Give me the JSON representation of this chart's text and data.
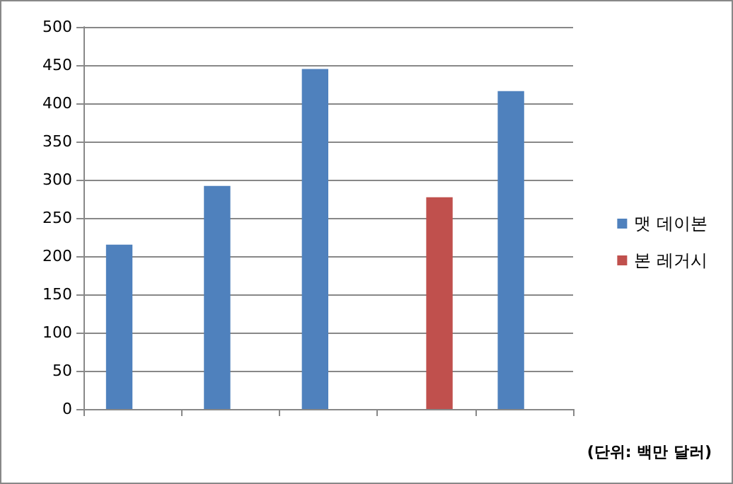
{
  "chart_data": {
    "type": "bar",
    "categories": [
      null,
      null,
      null,
      null,
      null
    ],
    "series": [
      {
        "name": "맷 데이본",
        "color": "#4f81bd",
        "values": [
          215,
          292,
          445,
          null,
          416
        ]
      },
      {
        "name": "본 레거시",
        "color": "#c0504d",
        "values": [
          null,
          null,
          null,
          277,
          null
        ]
      }
    ],
    "ylim": [
      0,
      500
    ],
    "yticks": [
      0,
      50,
      100,
      150,
      200,
      250,
      300,
      350,
      400,
      450,
      500
    ],
    "grid": "y",
    "legend": "right",
    "annotations": [
      "(단위: 백만 달러)"
    ]
  }
}
